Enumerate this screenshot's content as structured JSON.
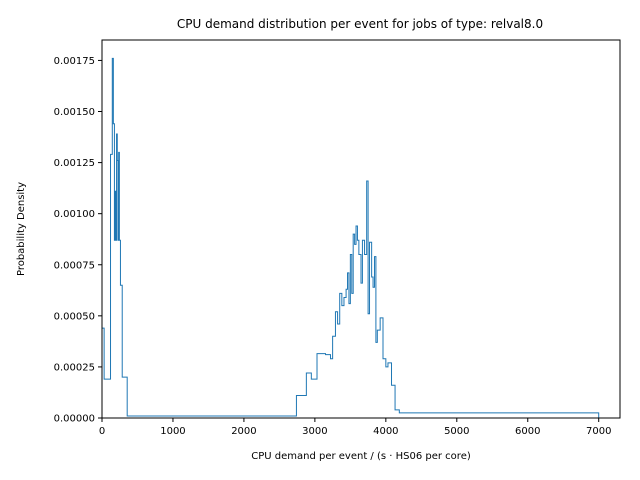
{
  "chart_data": {
    "type": "histogram-step",
    "title": "CPU demand distribution per event for jobs of type: relval8.0",
    "xlabel": "CPU demand per event / (s · HS06 per core)",
    "ylabel": "Probability Density",
    "xlim": [
      0,
      7300
    ],
    "ylim": [
      0,
      0.00185
    ],
    "xticks": [
      0,
      1000,
      2000,
      3000,
      4000,
      5000,
      6000,
      7000
    ],
    "xtick_labels": [
      "0",
      "1000",
      "2000",
      "3000",
      "4000",
      "5000",
      "6000",
      "7000"
    ],
    "yticks": [
      0,
      0.00025,
      0.0005,
      0.00075,
      0.001,
      0.00125,
      0.0015,
      0.00175
    ],
    "ytick_labels": [
      "0.00000",
      "0.00025",
      "0.00050",
      "0.00075",
      "0.00100",
      "0.00125",
      "0.00150",
      "0.00175"
    ],
    "grid": false,
    "line_color": "#1f77b4",
    "bin_edges": [
      0,
      30,
      120,
      145,
      160,
      175,
      185,
      195,
      205,
      215,
      225,
      235,
      245,
      260,
      285,
      355,
      2740,
      2880,
      2950,
      3030,
      3150,
      3220,
      3250,
      3290,
      3320,
      3350,
      3380,
      3410,
      3440,
      3460,
      3480,
      3500,
      3520,
      3540,
      3560,
      3580,
      3600,
      3620,
      3650,
      3670,
      3700,
      3730,
      3750,
      3770,
      3800,
      3820,
      3840,
      3860,
      3880,
      3920,
      3960,
      4000,
      4030,
      4080,
      4130,
      4190,
      4300,
      4700,
      7000
    ],
    "densities": [
      0.00044,
      0.00019,
      0.00129,
      0.00176,
      0.00144,
      0.00087,
      0.00111,
      0.00087,
      0.00139,
      0.00126,
      0.00087,
      0.0013,
      0.00087,
      0.00065,
      0.0002,
      1e-05,
      0.00011,
      0.00022,
      0.00019,
      0.000315,
      0.00031,
      0.00029,
      0.0004,
      0.00052,
      0.00046,
      0.00061,
      0.00055,
      0.00059,
      0.00063,
      0.00071,
      0.00056,
      0.0008,
      0.00061,
      0.0009,
      0.00085,
      0.00094,
      0.00087,
      0.0008,
      0.00066,
      0.00087,
      0.0008,
      0.00116,
      0.00051,
      0.00086,
      0.00069,
      0.00064,
      0.00079,
      0.00037,
      0.00043,
      0.00049,
      0.00029,
      0.00025,
      0.00027,
      0.00016,
      4e-05,
      2.5e-05,
      2.5e-05,
      2.5e-05
    ]
  }
}
